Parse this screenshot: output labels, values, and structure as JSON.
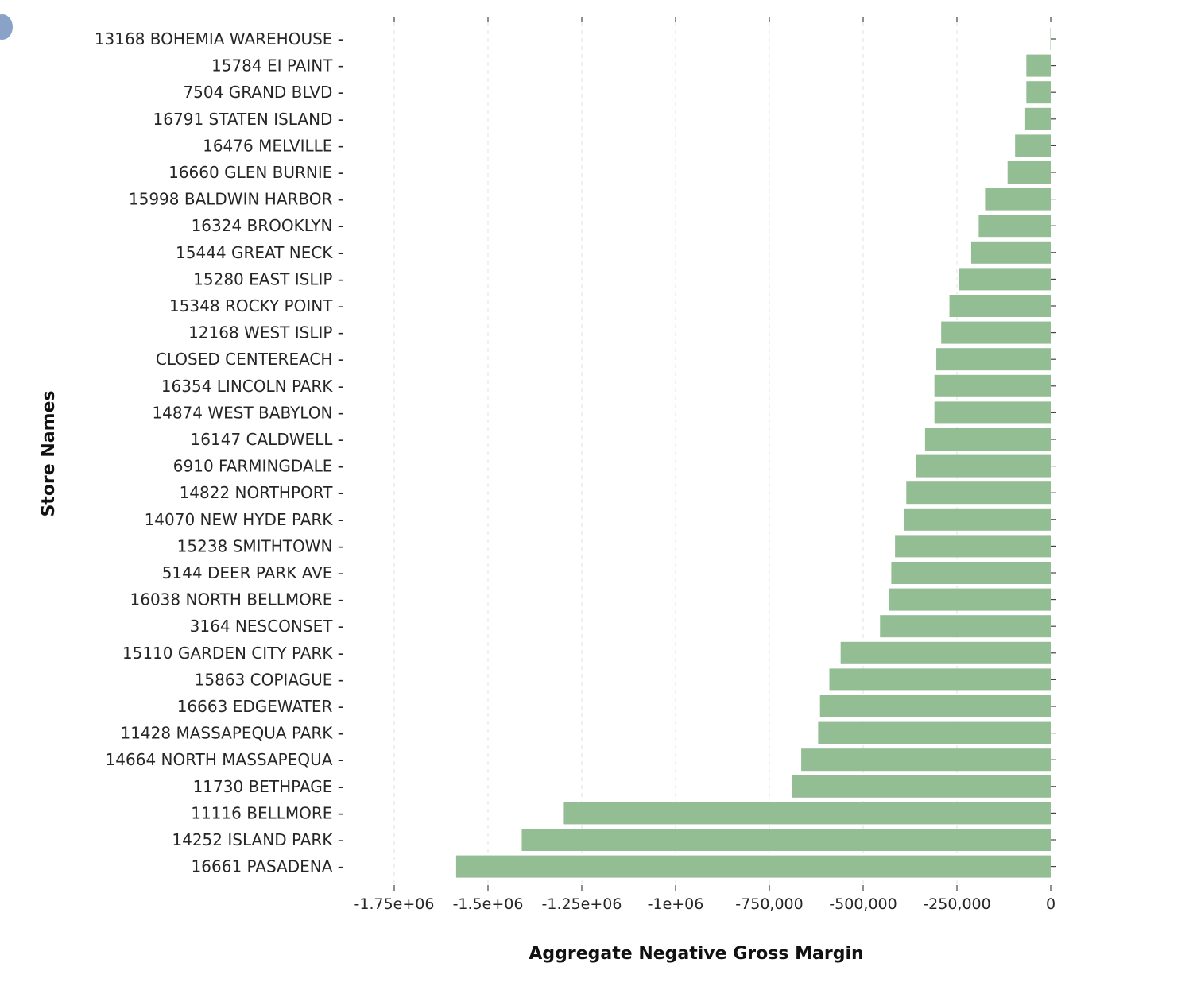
{
  "chart_data": {
    "type": "bar",
    "orientation": "horizontal",
    "xlabel": "Aggregate Negative Gross Margin",
    "ylabel": "Store Names",
    "xlim": [
      -1800000,
      0
    ],
    "xticks": [
      -1750000,
      -1500000,
      -1250000,
      -1000000,
      -750000,
      -500000,
      -250000,
      0
    ],
    "xtick_labels": [
      "-1.75e+06",
      "-1.5e+06",
      "-1.25e+06",
      "-1e+06",
      "-750,000",
      "-500,000",
      "-250,000",
      "0"
    ],
    "grid": "vertical dashed",
    "bar_color": "#93bd93",
    "categories": [
      "13168 BOHEMIA WAREHOUSE",
      "15784 EI PAINT",
      "7504 GRAND BLVD",
      "16791 STATEN ISLAND",
      "16476 MELVILLE",
      "16660 GLEN BURNIE",
      "15998 BALDWIN HARBOR",
      "16324 BROOKLYN",
      "15444 GREAT NECK",
      "15280 EAST ISLIP",
      "15348 ROCKY POINT",
      "12168 WEST ISLIP",
      "CLOSED CENTEREACH",
      "16354 LINCOLN PARK",
      "14874 WEST BABYLON",
      "16147 CALDWELL",
      "6910 FARMINGDALE",
      "14822 NORTHPORT",
      "14070 NEW HYDE PARK",
      "15238 SMITHTOWN",
      "5144 DEER PARK AVE",
      "16038 NORTH BELLMORE",
      "3164 NESCONSET",
      "15110 GARDEN CITY PARK",
      "15863 COPIAGUE",
      "16663 EDGEWATER",
      "11428 MASSAPEQUA PARK",
      "14664 NORTH MASSAPEQUA",
      "11730 BETHPAGE",
      "11116 BELLMORE",
      "14252 ISLAND PARK",
      "16661 PASADENA"
    ],
    "values": [
      -1000,
      -65000,
      -65000,
      -68000,
      -95000,
      -115000,
      -175000,
      -192000,
      -212000,
      -245000,
      -270000,
      -292000,
      -305000,
      -310000,
      -310000,
      -335000,
      -360000,
      -385000,
      -390000,
      -415000,
      -425000,
      -432000,
      -455000,
      -560000,
      -590000,
      -615000,
      -620000,
      -665000,
      -690000,
      -1300000,
      -1410000,
      -1585000
    ]
  }
}
